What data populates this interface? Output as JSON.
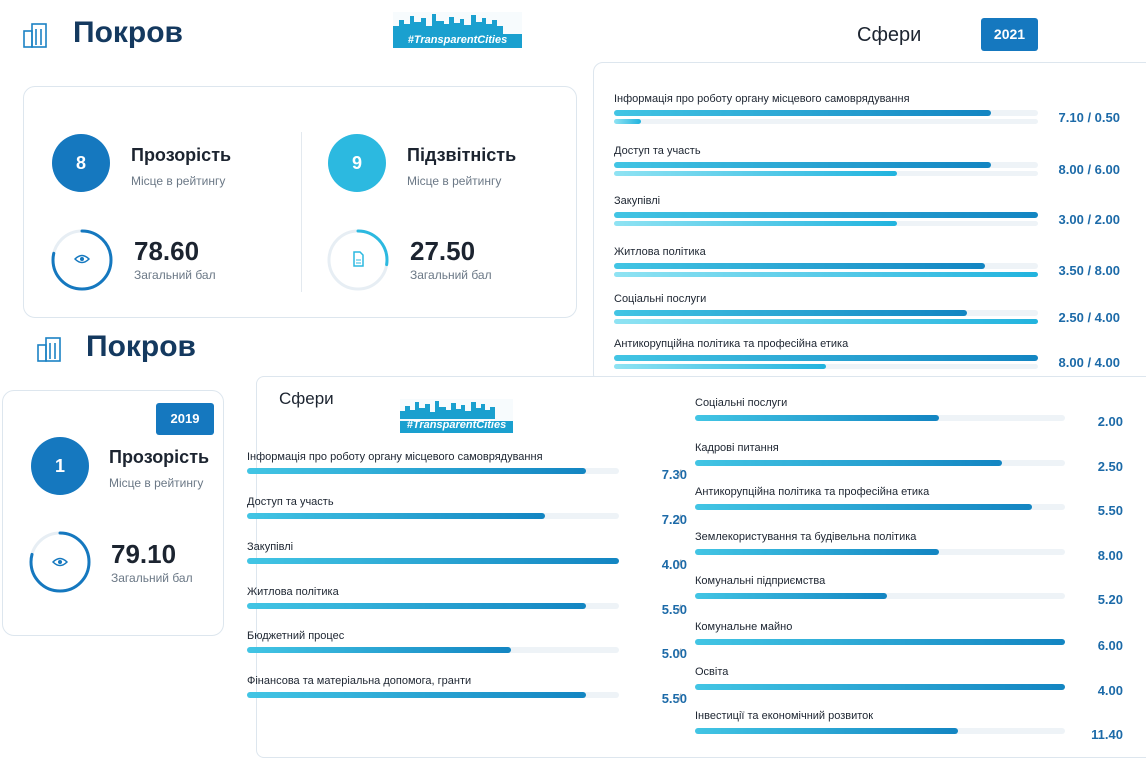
{
  "logo_text": "#TransparentCities",
  "top": {
    "city": "Покров",
    "year": "2021",
    "transparency": {
      "rank": "8",
      "title": "Прозорість",
      "rank_label": "Місце в рейтингу",
      "score": "78.60",
      "score_label": "Загальний бал",
      "progress": 0.786
    },
    "accountability": {
      "rank": "9",
      "title": "Підзвітність",
      "rank_label": "Місце в рейтингу",
      "score": "27.50",
      "score_label": "Загальний бал",
      "progress": 0.275
    },
    "spheres_title": "Сфери",
    "spheres": [
      {
        "name": "Інформація про роботу органу місцевого самоврядування",
        "score": "7.10 / 0.50",
        "v1": 7.1,
        "v2": 0.5,
        "max": 8
      },
      {
        "name": "Доступ та участь",
        "score": "8.00 / 6.00",
        "v1": 8.0,
        "v2": 6.0,
        "max": 9
      },
      {
        "name": "Закупівлі",
        "score": "3.00 / 2.00",
        "v1": 3.0,
        "v2": 2.0,
        "max": 3
      },
      {
        "name": "Житлова політика",
        "score": "3.50 / 8.00",
        "v1": 3.5,
        "v2": 8.0,
        "max": 4
      },
      {
        "name": "Соціальні послуги",
        "score": "2.50 / 4.00",
        "v1": 2.5,
        "v2": 4.0,
        "max": 3
      },
      {
        "name": "Антикорупційна політика та професійна етика",
        "score": "8.00 / 4.00",
        "v1": 8.0,
        "v2": 4.0,
        "max": 8
      }
    ]
  },
  "bottom": {
    "city": "Покров",
    "year": "2019",
    "transparency": {
      "rank": "1",
      "title": "Прозорість",
      "rank_label": "Місце в рейтингу",
      "score": "79.10",
      "score_label": "Загальний бал",
      "progress": 0.791
    },
    "spheres_title": "Сфери",
    "left_spheres": [
      {
        "name": "Інформація про роботу органу місцевого самоврядування",
        "score": "7.30",
        "frac": 0.91
      },
      {
        "name": "Доступ та участь",
        "score": "7.20",
        "frac": 0.8
      },
      {
        "name": "Закупівлі",
        "score": "4.00",
        "frac": 1.0
      },
      {
        "name": "Житлова політика",
        "score": "5.50",
        "frac": 0.91
      },
      {
        "name": "Бюджетний процес",
        "score": "5.00",
        "frac": 0.71
      },
      {
        "name": "Фінансова та матеріальна допомога, гранти",
        "score": "5.50",
        "frac": 0.91
      }
    ],
    "right_spheres": [
      {
        "name": "Соціальні послуги",
        "score": "2.00",
        "frac": 0.66
      },
      {
        "name": "Кадрові питання",
        "score": "2.50",
        "frac": 0.83
      },
      {
        "name": "Антикорупційна політика та професійна етика",
        "score": "5.50",
        "frac": 0.91
      },
      {
        "name": "Землекористування та будівельна політика",
        "score": "8.00",
        "frac": 0.66
      },
      {
        "name": "Комунальні підприємства",
        "score": "5.20",
        "frac": 0.52
      },
      {
        "name": "Комунальне майно",
        "score": "6.00",
        "frac": 1.0
      },
      {
        "name": "Освіта",
        "score": "4.00",
        "frac": 1.0
      },
      {
        "name": "Інвестиції та економічний розвиток",
        "score": "11.40",
        "frac": 0.71
      }
    ]
  }
}
